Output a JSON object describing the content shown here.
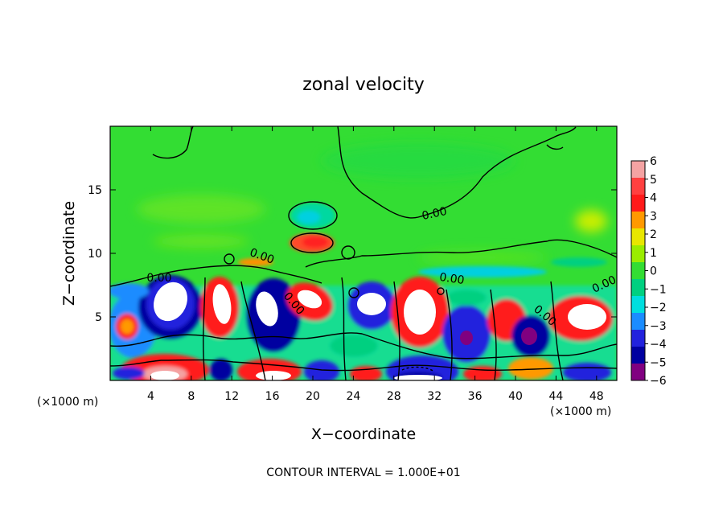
{
  "chart_data": {
    "type": "heatmap",
    "title": "zonal velocity",
    "xlabel": "X−coordinate",
    "ylabel": "Z−coordinate",
    "x_unit": "(×1000 m)",
    "y_unit": "(×1000 m)",
    "xlim": [
      0,
      50
    ],
    "ylim": [
      0,
      20
    ],
    "x_ticks": [
      "4",
      "8",
      "12",
      "16",
      "20",
      "24",
      "28",
      "32",
      "36",
      "40",
      "44",
      "48"
    ],
    "x_tick_values": [
      4,
      8,
      12,
      16,
      20,
      24,
      28,
      32,
      36,
      40,
      44,
      48
    ],
    "y_ticks": [
      "5",
      "10",
      "15"
    ],
    "y_tick_values": [
      5,
      10,
      15
    ],
    "colorbar": {
      "labels": [
        "6",
        "5",
        "4",
        "3",
        "2",
        "1",
        "0",
        "−1",
        "−2",
        "−3",
        "−4",
        "−5",
        "−6"
      ],
      "values": [
        6,
        5,
        4,
        3,
        2,
        1,
        0,
        -1,
        -2,
        -3,
        -4,
        -5,
        -6
      ],
      "colors": [
        "#f4a3a3",
        "#ff4040",
        "#ff1a1a",
        "#ff9900",
        "#e8e600",
        "#9aec00",
        "#33dd33",
        "#00d080",
        "#00dede",
        "#1a8cff",
        "#2222dd",
        "#0000a0",
        "#800080"
      ]
    },
    "contour_labels": [
      "0.00",
      "0.00",
      "0.00",
      "0.00",
      "0.00",
      "0.00",
      "0.00"
    ],
    "footer": "CONTOUR INTERVAL = 1.000E+01"
  }
}
